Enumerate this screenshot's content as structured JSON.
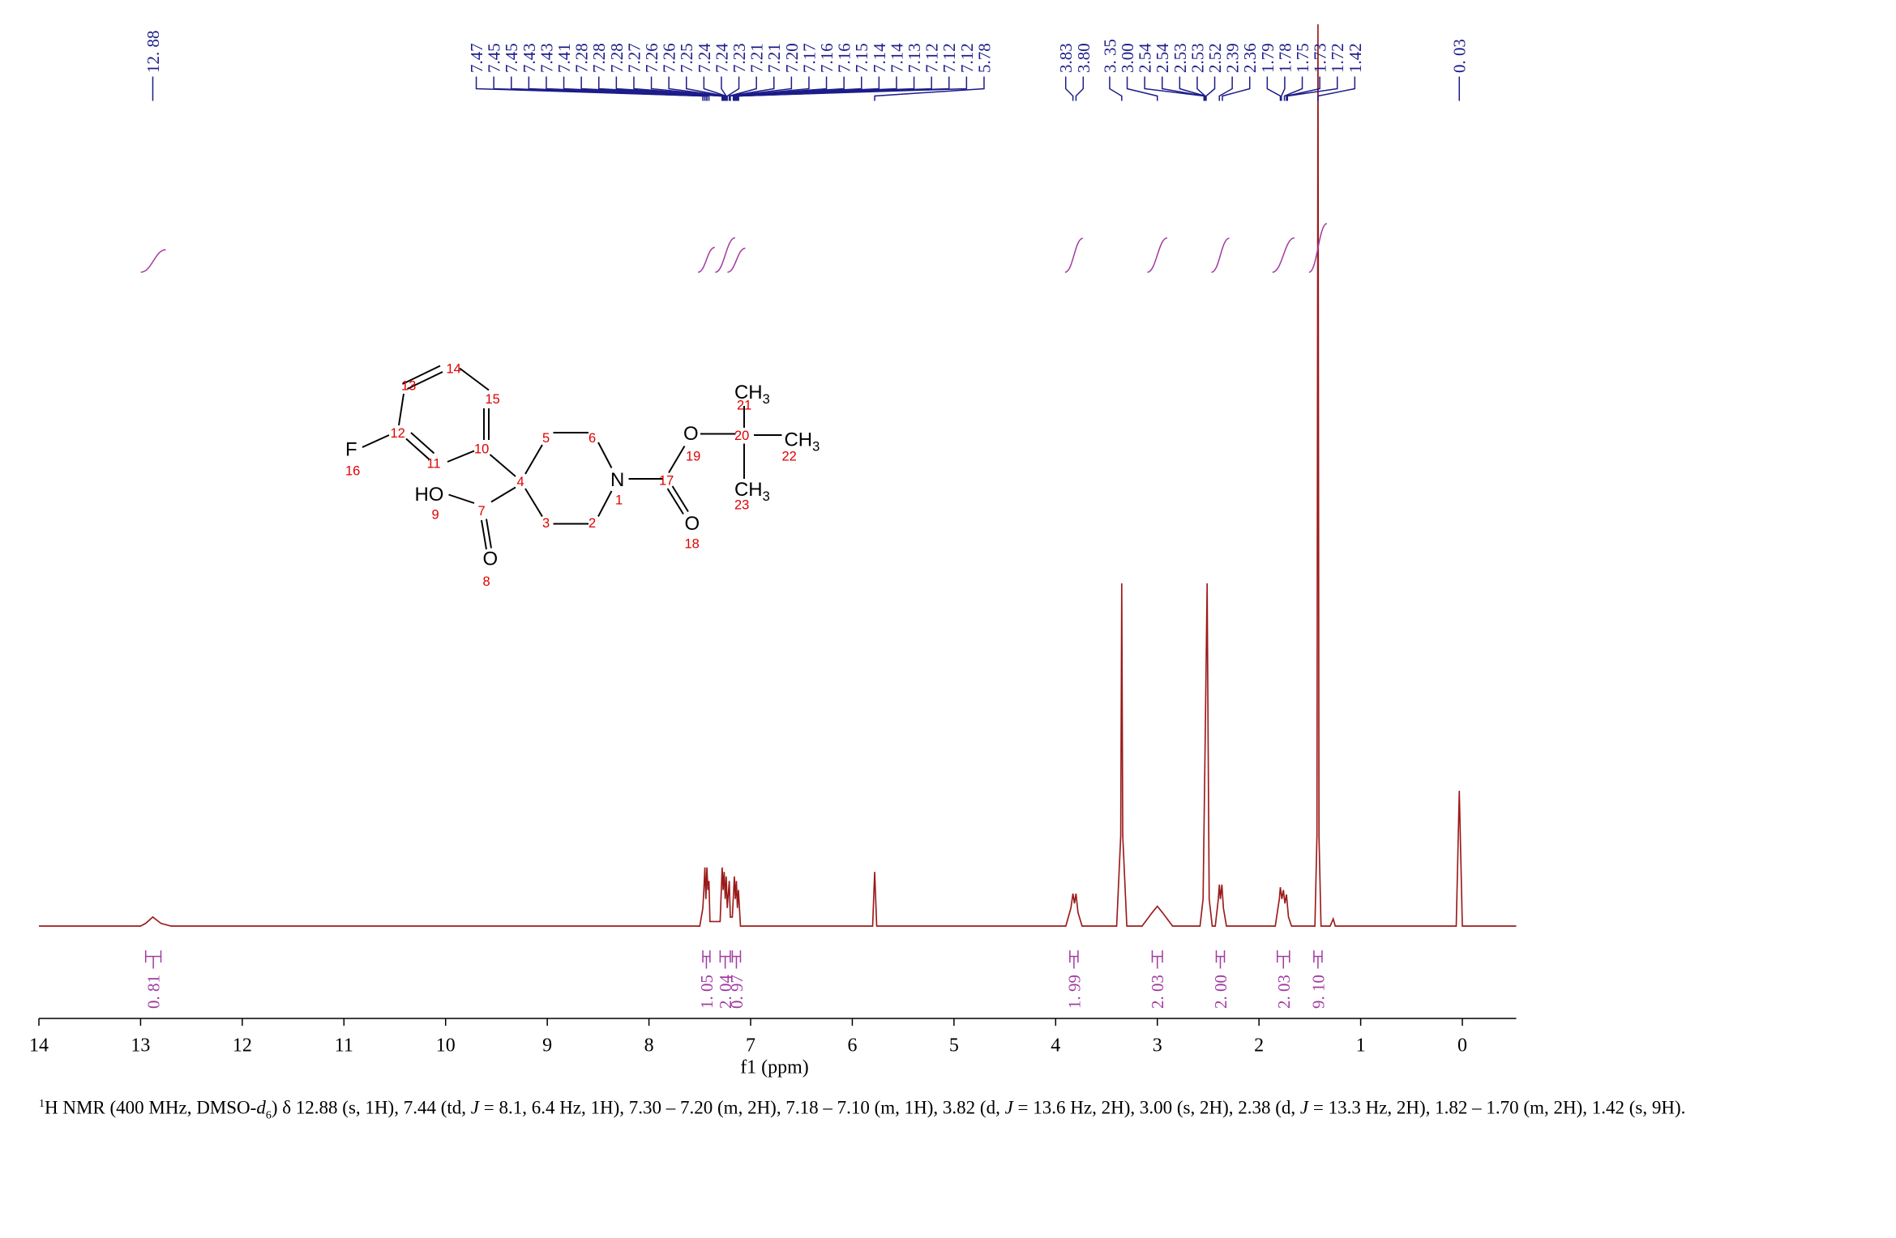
{
  "chart_data": {
    "type": "line",
    "xlabel": "f1 (ppm)",
    "xlim": [
      14,
      -0.53
    ],
    "ylim": [
      0,
      100
    ],
    "xticks": [
      14,
      13,
      12,
      11,
      10,
      9,
      8,
      7,
      6,
      5,
      4,
      3,
      2,
      1,
      0
    ],
    "color": "#9b1b1b",
    "x": [
      14.0,
      13.0,
      12.95,
      12.88,
      12.8,
      12.7,
      7.5,
      7.47,
      7.46,
      7.45,
      7.44,
      7.43,
      7.42,
      7.41,
      7.4,
      7.3,
      7.28,
      7.27,
      7.26,
      7.25,
      7.24,
      7.23,
      7.21,
      7.2,
      7.18,
      7.16,
      7.15,
      7.14,
      7.13,
      7.12,
      7.1,
      5.8,
      5.78,
      5.76,
      3.9,
      3.85,
      3.83,
      3.815,
      3.8,
      3.78,
      3.74,
      3.4,
      3.36,
      3.35,
      3.34,
      3.3,
      3.15,
      3.05,
      3.0,
      2.95,
      2.85,
      2.58,
      2.55,
      2.53,
      2.51,
      2.5,
      2.49,
      2.46,
      2.43,
      2.4,
      2.39,
      2.38,
      2.365,
      2.35,
      2.32,
      1.84,
      1.8,
      1.79,
      1.775,
      1.76,
      1.745,
      1.73,
      1.71,
      1.68,
      1.45,
      1.43,
      1.42,
      1.41,
      1.39,
      1.3,
      1.27,
      1.25,
      0.06,
      0.03,
      0.0,
      -0.53
    ],
    "values": [
      0,
      0,
      0.3,
      1.0,
      0.3,
      0,
      0,
      2,
      4,
      6.5,
      3,
      6.5,
      4,
      5,
      0.5,
      0.5,
      6.5,
      4,
      6,
      3,
      5.5,
      2,
      5,
      1,
      1,
      5.5,
      3,
      5,
      2,
      4,
      0,
      0,
      6,
      0,
      0,
      2,
      3.6,
      2.5,
      3.6,
      1.5,
      0,
      0,
      10,
      38,
      10,
      0,
      0,
      1.5,
      2.2,
      1.5,
      0,
      0,
      3,
      20,
      38,
      20,
      3,
      0,
      0,
      3,
      4.6,
      3,
      4.6,
      2,
      0,
      0,
      3,
      4.3,
      3,
      4,
      2.5,
      3.5,
      1,
      0,
      0,
      10,
      100,
      10,
      0,
      0,
      0.8,
      0,
      0,
      15,
      0,
      0
    ],
    "peaks": [
      12.88,
      7.47,
      7.45,
      7.45,
      7.43,
      7.43,
      7.41,
      7.28,
      7.28,
      7.28,
      7.27,
      7.26,
      7.26,
      7.25,
      7.24,
      7.24,
      7.23,
      7.21,
      7.21,
      7.2,
      7.17,
      7.16,
      7.16,
      7.15,
      7.14,
      7.14,
      7.13,
      7.12,
      7.12,
      7.12,
      5.78,
      3.83,
      3.8,
      3.35,
      3.0,
      2.54,
      2.54,
      2.53,
      2.53,
      2.52,
      2.39,
      2.36,
      1.79,
      1.78,
      1.75,
      1.73,
      1.72,
      1.42,
      0.03
    ],
    "peak_labels": [
      "12. 88",
      "7.47",
      "7.45",
      "7.45",
      "7.43",
      "7.43",
      "7.41",
      "7.28",
      "7.28",
      "7.28",
      "7.27",
      "7.26",
      "7.26",
      "7.25",
      "7.24",
      "7.24",
      "7.23",
      "7.21",
      "7.21",
      "7.20",
      "7.17",
      "7.16",
      "7.16",
      "7.15",
      "7.14",
      "7.14",
      "7.13",
      "7.12",
      "7.12",
      "7.12",
      "5.78",
      "3.83",
      "3.80",
      "3. 35",
      "3.00",
      "2.54",
      "2.54",
      "2.53",
      "2.53",
      "2.52",
      "2.39",
      "2.36",
      "1.79",
      "1.78",
      "1.75",
      "1.73",
      "1.72",
      "1.42",
      "0. 03"
    ],
    "integrals": {
      "ranges": [
        [
          12.95,
          12.8
        ],
        [
          7.47,
          7.4
        ],
        [
          7.3,
          7.2
        ],
        [
          7.18,
          7.1
        ],
        [
          3.86,
          3.78
        ],
        [
          3.05,
          2.95
        ],
        [
          2.42,
          2.34
        ],
        [
          1.82,
          1.7
        ],
        [
          1.46,
          1.38
        ]
      ],
      "values": [
        0.81,
        1.05,
        2.04,
        0.97,
        1.99,
        2.03,
        2.0,
        2.03,
        9.1
      ],
      "value_labels": [
        "0. 81",
        "1. 05",
        "2. 04",
        "0. 97",
        "1. 99",
        "2. 03",
        "2. 00",
        "2. 03",
        "9. 10"
      ]
    }
  },
  "structure": {
    "atoms": [
      "F",
      "HO",
      "O",
      "N",
      "O",
      "O",
      "CH",
      "CH",
      "CH"
    ],
    "subscripts": [
      "3",
      "3",
      "3"
    ],
    "numbers": [
      "14",
      "13",
      "15",
      "12",
      "10",
      "11",
      "16",
      "5",
      "6",
      "4",
      "9",
      "7",
      "3",
      "2",
      "1",
      "17",
      "19",
      "20",
      "21",
      "22",
      "23",
      "18",
      "8"
    ]
  },
  "description": [
    "1",
    "H NMR (400 MHz, DMSO-",
    "d",
    "6",
    ") δ 12.88 (s, 1H), 7.44 (td, ",
    "J",
    " = 8.1, 6.4 Hz, 1H), 7.30 – 7.20 (m, 2H), 7.18 – 7.10 (m, 1H), 3.82 (d, ",
    "J",
    " = 13.6 Hz, 2H), 3.00 (s, 2H), 2.38 (d, ",
    "J",
    " = 13.3 Hz, 2H), 1.82 – 1.70 (m, 2H), 1.42 (s, 9H)."
  ]
}
